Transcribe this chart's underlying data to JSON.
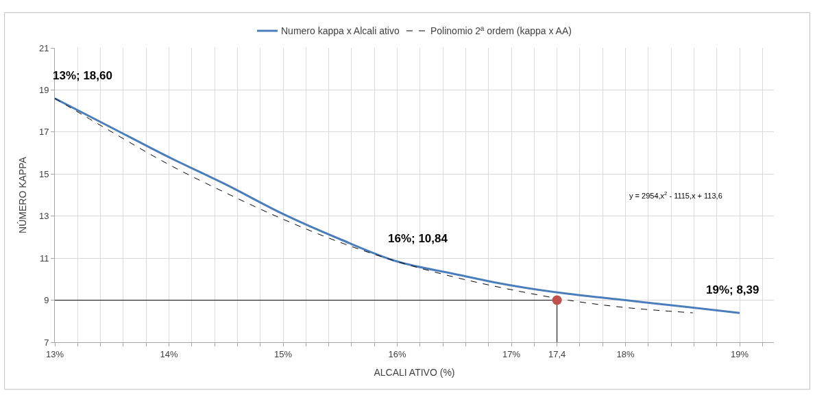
{
  "chart_data": {
    "type": "line",
    "xlabel": "ALCALI ATIVO (%)",
    "ylabel": "NÚMERO KAPPA",
    "xlim": [
      13,
      19.3
    ],
    "ylim": [
      7,
      21
    ],
    "xticks": [
      {
        "value": 13,
        "label": "13%"
      },
      {
        "value": 13.2,
        "label": null
      },
      {
        "value": 13.4,
        "label": null
      },
      {
        "value": 13.6,
        "label": null
      },
      {
        "value": 13.8,
        "label": null
      },
      {
        "value": 14,
        "label": "14%"
      },
      {
        "value": 14.2,
        "label": null
      },
      {
        "value": 14.4,
        "label": null
      },
      {
        "value": 14.6,
        "label": null
      },
      {
        "value": 14.8,
        "label": null
      },
      {
        "value": 15,
        "label": "15%"
      },
      {
        "value": 15.2,
        "label": null
      },
      {
        "value": 15.4,
        "label": null
      },
      {
        "value": 15.6,
        "label": null
      },
      {
        "value": 15.8,
        "label": null
      },
      {
        "value": 16,
        "label": "16%"
      },
      {
        "value": 16.2,
        "label": null
      },
      {
        "value": 16.4,
        "label": null
      },
      {
        "value": 16.6,
        "label": null
      },
      {
        "value": 16.8,
        "label": null
      },
      {
        "value": 17,
        "label": "17%"
      },
      {
        "value": 17.2,
        "label": null
      },
      {
        "value": 17.4,
        "label": "17,4"
      },
      {
        "value": 17.6,
        "label": null
      },
      {
        "value": 17.8,
        "label": null
      },
      {
        "value": 18,
        "label": "18%"
      },
      {
        "value": 18.2,
        "label": null
      },
      {
        "value": 18.4,
        "label": null
      },
      {
        "value": 18.6,
        "label": null
      },
      {
        "value": 18.8,
        "label": null
      },
      {
        "value": 19,
        "label": "19%"
      },
      {
        "value": 19.2,
        "label": null
      }
    ],
    "yticks": [
      7,
      9,
      11,
      13,
      15,
      17,
      19,
      21
    ],
    "grid": true,
    "legend": "top",
    "series": [
      {
        "name": "Numero kappa x Alcali ativo",
        "color": "#4a7ebb",
        "x": [
          13,
          13.5,
          14,
          14.5,
          15,
          15.5,
          16,
          16.5,
          17,
          17.5,
          18,
          18.5,
          19
        ],
        "values": [
          18.6,
          17.2,
          15.8,
          14.5,
          13.1,
          11.9,
          10.84,
          10.25,
          9.7,
          9.3,
          9.0,
          8.7,
          8.39
        ]
      },
      {
        "name": "Polinomio 2ª ordem (kappa x AA)",
        "color": "#000000",
        "line_style": "dashed",
        "x": [
          13,
          13.5,
          14,
          14.5,
          15,
          15.5,
          16,
          16.5,
          17,
          17.5,
          18,
          18.59
        ],
        "values": [
          18.6,
          17.0,
          15.45,
          14.1,
          12.85,
          11.75,
          10.84,
          10.1,
          9.5,
          9.0,
          8.65,
          8.4
        ]
      },
      {
        "color": "#000000",
        "x": [
          13,
          17.4,
          17.4
        ],
        "values": [
          9,
          9,
          7
        ]
      },
      {
        "type": "scatter",
        "marker": "circle",
        "color": "#c0504d",
        "x": [
          17.4
        ],
        "values": [
          9
        ]
      }
    ],
    "annotations": [
      {
        "text": "13%; 18,60",
        "x": 13,
        "y": 18.6
      },
      {
        "text": "16%; 10,84",
        "x": 16,
        "y": 10.84
      },
      {
        "text": "19%; 8,39",
        "x": 19,
        "y": 8.39
      },
      "y = 2954,x$^{2}$ - 1115,x + 113,6"
    ]
  }
}
